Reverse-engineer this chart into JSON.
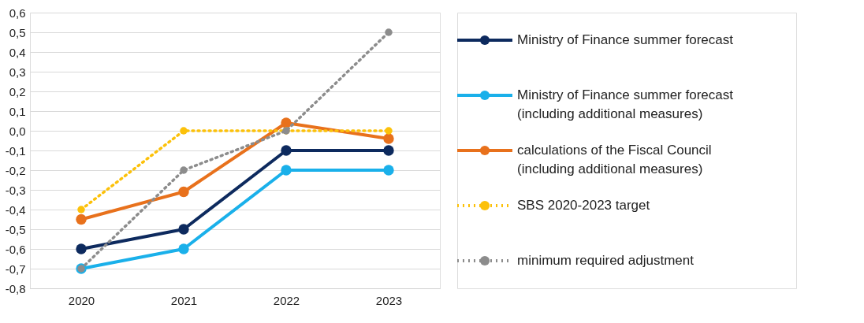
{
  "chart_data": {
    "type": "line",
    "categories": [
      "2020",
      "2021",
      "2022",
      "2023"
    ],
    "series": [
      {
        "name": "Ministry of Finance summer forecast",
        "color": "#0d2a5e",
        "values": [
          -0.6,
          -0.5,
          -0.1,
          -0.1
        ]
      },
      {
        "name": "Ministry of Finance summer forecast (including additional measures)",
        "color": "#1ab0ea",
        "values": [
          -0.7,
          -0.6,
          -0.2,
          -0.2
        ]
      },
      {
        "name": "calculations of the Fiscal Council (including additional measures)",
        "color": "#e8711c",
        "values": [
          -0.45,
          -0.31,
          0.04,
          -0.04
        ]
      },
      {
        "name": "SBS 2020-2023 target",
        "color": "#fcc10a",
        "values": [
          -0.4,
          0,
          0,
          0
        ],
        "line_style": "dotted"
      },
      {
        "name": "minimum required adjustment",
        "color": "#8c8c8c",
        "values": [
          -0.7,
          -0.2,
          0,
          0.5
        ],
        "line_style": "dotted"
      }
    ],
    "ylim": [
      -0.8,
      0.6
    ],
    "yticks": [
      {
        "value": 0.6,
        "label": "0,6"
      },
      {
        "value": 0.5,
        "label": "0,5"
      },
      {
        "value": 0.4,
        "label": "0,4"
      },
      {
        "value": 0.3,
        "label": "0,3"
      },
      {
        "value": 0.2,
        "label": "0,2"
      },
      {
        "value": 0.1,
        "label": "0,1"
      },
      {
        "value": 0.0,
        "label": "0,0"
      },
      {
        "value": -0.1,
        "label": "-0,1"
      },
      {
        "value": -0.2,
        "label": "-0,2"
      },
      {
        "value": -0.3,
        "label": "-0,3"
      },
      {
        "value": -0.4,
        "label": "-0,4"
      },
      {
        "value": -0.5,
        "label": "-0,5"
      },
      {
        "value": -0.6,
        "label": "-0,6"
      },
      {
        "value": -0.7,
        "label": "-0,7"
      },
      {
        "value": -0.8,
        "label": "-0,8"
      }
    ],
    "grid": "y",
    "legend": "right",
    "marker": "circle",
    "line_style": "solid"
  }
}
